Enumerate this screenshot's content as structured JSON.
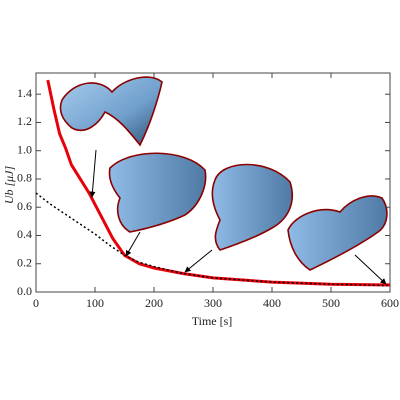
{
  "chart_data": {
    "type": "line",
    "xlabel": "Time [s]",
    "ylabel": "Ub [μJ]",
    "xlim": [
      0,
      600
    ],
    "xticks": [
      0,
      100,
      200,
      300,
      400,
      500,
      600
    ],
    "ylim": [
      0,
      1.55
    ],
    "yticks": [
      {
        "value": 0,
        "label": "0.0"
      },
      0.2,
      0.4,
      0.6,
      0.8,
      {
        "value": 1,
        "label": "1.0"
      },
      1.2,
      1.4
    ],
    "series": [
      {
        "color": "#e8000b",
        "style": "solid",
        "x": [
          20,
          30,
          40,
          50,
          60,
          75,
          90,
          100,
          115,
          130,
          150,
          175,
          200,
          250,
          300,
          400,
          500,
          600
        ],
        "values": [
          1.5,
          1.3,
          1.12,
          1.02,
          0.9,
          0.8,
          0.7,
          0.62,
          0.5,
          0.38,
          0.26,
          0.2,
          0.17,
          0.13,
          0.1,
          0.07,
          0.055,
          0.05
        ]
      },
      {
        "color": "#000000",
        "style": "dotted",
        "x": [
          0,
          25,
          50,
          75,
          100,
          125,
          150,
          175,
          200,
          250,
          300,
          400,
          500,
          600
        ],
        "values": [
          0.7,
          0.62,
          0.55,
          0.48,
          0.41,
          0.33,
          0.26,
          0.21,
          0.18,
          0.13,
          0.1,
          0.07,
          0.055,
          0.045
        ]
      }
    ]
  }
}
